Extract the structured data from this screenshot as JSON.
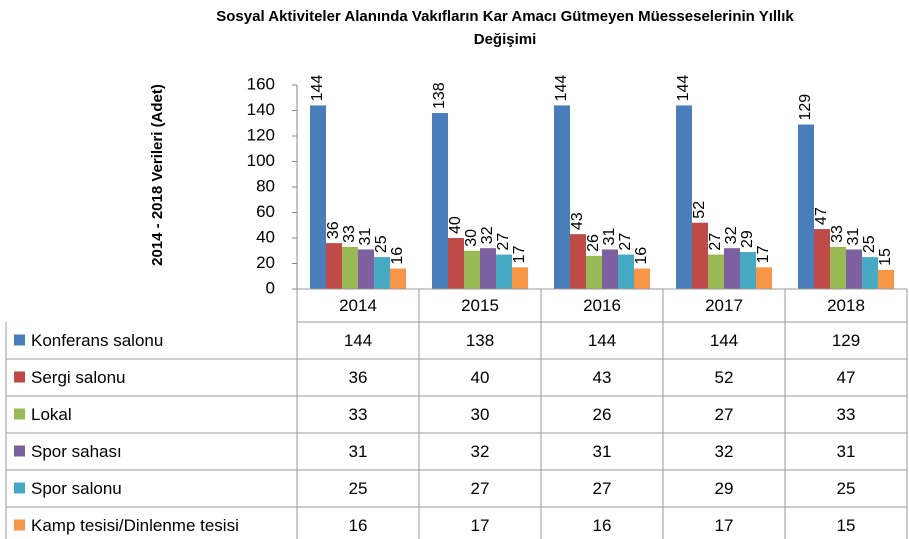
{
  "chart_data": {
    "type": "bar",
    "title_lines": [
      "Sosyal Aktiviteler Alanında Vakıfların Kar Amacı Gütmeyen Müesseselerinin Yıllık",
      "Değişimi"
    ],
    "y_label": "2014 - 2018 Verileri (Adet)",
    "categories": [
      "2014",
      "2015",
      "2016",
      "2017",
      "2018"
    ],
    "series": [
      {
        "name": "Konferans salonu",
        "color": "#4a7ebb",
        "values": [
          144,
          138,
          144,
          144,
          129
        ]
      },
      {
        "name": "Sergi salonu",
        "color": "#be4b48",
        "values": [
          36,
          40,
          43,
          52,
          47
        ]
      },
      {
        "name": "Lokal",
        "color": "#98b954",
        "values": [
          33,
          30,
          26,
          27,
          33
        ]
      },
      {
        "name": "Spor sahası",
        "color": "#7d60a0",
        "values": [
          31,
          32,
          31,
          32,
          31
        ]
      },
      {
        "name": "Spor salonu",
        "color": "#46aac5",
        "values": [
          25,
          27,
          27,
          29,
          25
        ]
      },
      {
        "name": "Kamp tesisi/Dinlenme tesisi",
        "color": "#f79646",
        "values": [
          16,
          17,
          16,
          17,
          15
        ]
      }
    ],
    "ylim": [
      0,
      160
    ],
    "yticks": [
      0,
      20,
      40,
      60,
      80,
      100,
      120,
      140,
      160
    ]
  }
}
